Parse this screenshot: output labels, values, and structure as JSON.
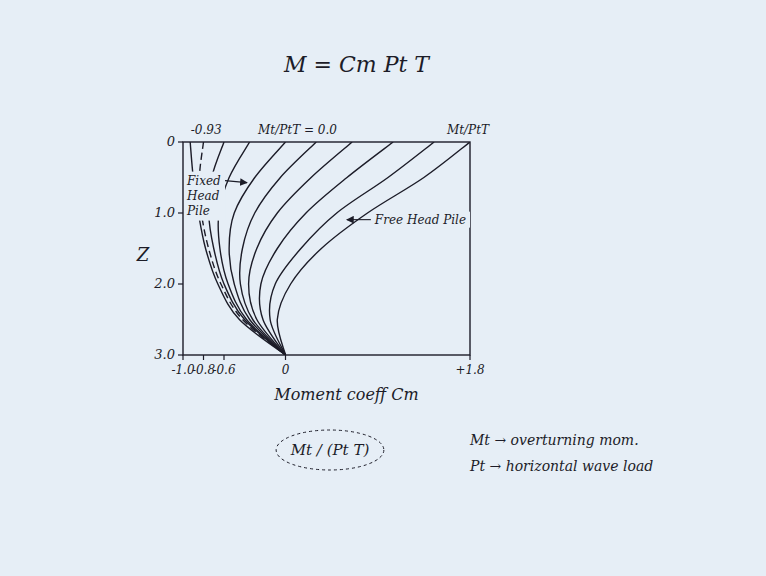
{
  "chart_data": {
    "type": "line",
    "orientation": "horizontal",
    "title": "M = Cm Pt T",
    "x_label": "Moment coeff Cm",
    "y_label": "Z",
    "y": [
      0,
      0.5,
      1,
      1.5,
      2,
      2.5,
      3
    ],
    "xlim": [
      -1.0,
      1.8
    ],
    "xticks": [
      {
        "value": -1.0,
        "label": "-1.0"
      },
      -0.8,
      -0.6,
      0,
      {
        "value": 1.8,
        "label": "+1.8"
      }
    ],
    "ylim": [
      0,
      3.0
    ],
    "yticks": [
      0,
      {
        "value": 1.0,
        "label": "1.0"
      },
      {
        "value": 2.0,
        "label": "2.0"
      },
      {
        "value": 3.0,
        "label": "3.0"
      }
    ],
    "grid": false,
    "color": "#1c1c28",
    "series": [
      {
        "line_style": "solid",
        "values": [
          -0.93,
          -0.9,
          -0.85,
          -0.78,
          -0.66,
          -0.45,
          0
        ]
      },
      {
        "line_style": "dashed",
        "values": [
          -0.8,
          -0.84,
          -0.82,
          -0.75,
          -0.63,
          -0.42,
          0
        ]
      },
      {
        "line_style": "solid",
        "values": [
          -0.6,
          -0.72,
          -0.75,
          -0.7,
          -0.6,
          -0.4,
          0
        ]
      },
      {
        "line_style": "solid",
        "values": [
          -0.35,
          -0.55,
          -0.65,
          -0.64,
          -0.56,
          -0.38,
          0
        ]
      },
      {
        "line_style": "solid",
        "values": [
          0,
          -0.3,
          -0.5,
          -0.55,
          -0.5,
          -0.35,
          0
        ]
      },
      {
        "line_style": "solid",
        "values": [
          0.3,
          -0.05,
          -0.3,
          -0.42,
          -0.44,
          -0.32,
          0
        ]
      },
      {
        "line_style": "solid",
        "values": [
          0.65,
          0.25,
          -0.08,
          -0.28,
          -0.36,
          -0.28,
          0
        ]
      },
      {
        "line_style": "solid",
        "values": [
          1.05,
          0.6,
          0.2,
          -0.08,
          -0.24,
          -0.22,
          0
        ]
      },
      {
        "line_style": "solid",
        "values": [
          1.45,
          1.0,
          0.5,
          0.15,
          -0.1,
          -0.15,
          0
        ]
      },
      {
        "line_style": "solid",
        "values": [
          1.8,
          1.35,
          0.8,
          0.35,
          0.05,
          -0.08,
          0
        ]
      }
    ],
    "top_labels": [
      "-0.93",
      "Mt/PtT = 0.0",
      "Mt/PtT"
    ],
    "annotations": [
      "Fixed Head Pile",
      "Free Head Pile"
    ],
    "notes": [
      "Mt / (Pt T)",
      "Mt → overturning mom.",
      "Pt → horizontal wave load"
    ]
  }
}
